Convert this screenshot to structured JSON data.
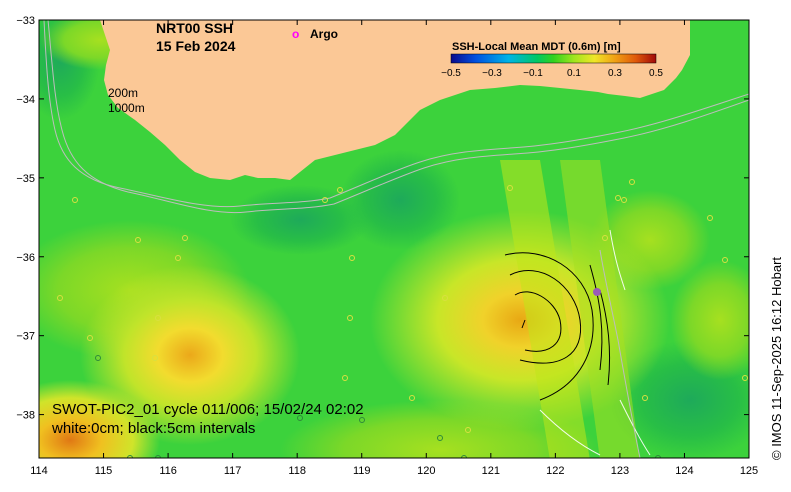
{
  "title": {
    "product": "NRT00 SSH",
    "date": "15 Feb 2024"
  },
  "legend": {
    "argo_symbol": "o",
    "argo_label": "Argo",
    "argo_color": "#ff00ff"
  },
  "isobaths": {
    "shallow": "200m",
    "deep": "1000m"
  },
  "colorbar": {
    "title": "SSH-Local Mean MDT (0.6m) [m]",
    "ticks": [
      "−0.5",
      "−0.3",
      "−0.1",
      "0.1",
      "0.3",
      "0.5"
    ],
    "range": [
      -0.5,
      0.5
    ],
    "colors": [
      "#0a0a8c",
      "#0050e0",
      "#00b4e6",
      "#00c864",
      "#32d21e",
      "#a0e61e",
      "#f0e628",
      "#f0a014",
      "#e05a0a",
      "#a00a0a"
    ]
  },
  "axes": {
    "lon_ticks": [
      "114",
      "115",
      "116",
      "117",
      "118",
      "119",
      "120",
      "121",
      "122",
      "123",
      "124",
      "125"
    ],
    "lat_ticks": [
      "−33",
      "−34",
      "−35",
      "−36",
      "−37",
      "−38"
    ],
    "lon_range": [
      114,
      125
    ],
    "lat_range": [
      -38.55,
      -33
    ]
  },
  "swot": {
    "line1": "SWOT-PIC2_01 cycle 011/006; 15/02/24 02:02",
    "line2": "white:0cm; black:5cm intervals"
  },
  "credit": "© IMOS 11-Sep-2025 16:12 Hobart",
  "colors": {
    "land": "#fbc896",
    "base_green": "#3cd23c",
    "frame": "#000000"
  }
}
